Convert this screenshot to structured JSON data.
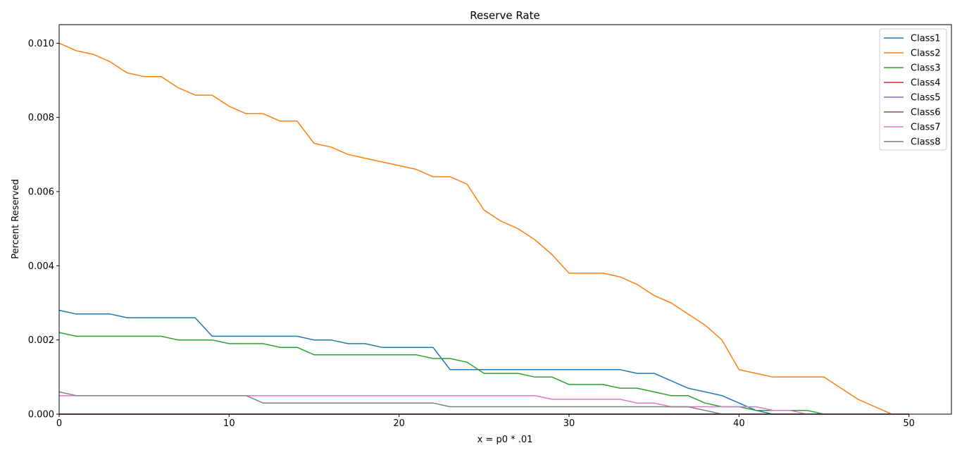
{
  "chart_data": {
    "type": "line",
    "title": "Reserve Rate",
    "xlabel": "x = p0 * .01",
    "ylabel": "Percent Reserved",
    "xlim": [
      0,
      52.5
    ],
    "ylim": [
      0,
      0.0105
    ],
    "x_ticks": [
      0,
      10,
      20,
      30,
      40,
      50
    ],
    "y_ticks": [
      0.0,
      0.002,
      0.004,
      0.006,
      0.008,
      0.01
    ],
    "x_tick_labels": [
      "0",
      "10",
      "20",
      "30",
      "40",
      "50"
    ],
    "y_tick_labels": [
      "0.000",
      "0.002",
      "0.004",
      "0.006",
      "0.008",
      "0.010"
    ],
    "grid": false,
    "legend_position": "top-right",
    "x": [
      0,
      1,
      2,
      3,
      4,
      5,
      6,
      7,
      8,
      9,
      10,
      11,
      12,
      13,
      14,
      15,
      16,
      17,
      18,
      19,
      20,
      21,
      22,
      23,
      24,
      25,
      26,
      27,
      28,
      29,
      30,
      31,
      32,
      33,
      34,
      35,
      36,
      37,
      38,
      39,
      40,
      41,
      42,
      43,
      44,
      45,
      46,
      47,
      48,
      49,
      50
    ],
    "series": [
      {
        "name": "Class1",
        "color": "#1f77b4",
        "values": [
          0.0028,
          0.0027,
          0.0027,
          0.0027,
          0.0026,
          0.0026,
          0.0026,
          0.0026,
          0.0026,
          0.0021,
          0.0021,
          0.0021,
          0.0021,
          0.0021,
          0.0021,
          0.002,
          0.002,
          0.0019,
          0.0019,
          0.0018,
          0.0018,
          0.0018,
          0.0018,
          0.0012,
          0.0012,
          0.0012,
          0.0012,
          0.0012,
          0.0012,
          0.0012,
          0.0012,
          0.0012,
          0.0012,
          0.0012,
          0.0011,
          0.0011,
          0.0009,
          0.0007,
          0.0006,
          0.0005,
          0.0003,
          0.0001,
          0,
          0,
          0,
          0,
          0,
          0,
          0,
          0,
          0
        ]
      },
      {
        "name": "Class2",
        "color": "#ff7f0e",
        "values": [
          0.01,
          0.0098,
          0.0097,
          0.0095,
          0.0092,
          0.0091,
          0.0091,
          0.0088,
          0.0086,
          0.0086,
          0.0083,
          0.0081,
          0.0081,
          0.0079,
          0.0079,
          0.0073,
          0.0072,
          0.007,
          0.0069,
          0.0068,
          0.0067,
          0.0066,
          0.0064,
          0.0064,
          0.0062,
          0.0055,
          0.0052,
          0.005,
          0.0047,
          0.0043,
          0.0038,
          0.0038,
          0.0038,
          0.0037,
          0.0035,
          0.0032,
          0.003,
          0.0027,
          0.0024,
          0.002,
          0.0012,
          0.0011,
          0.001,
          0.001,
          0.001,
          0.001,
          0.0007,
          0.0004,
          0.0002,
          0,
          0
        ]
      },
      {
        "name": "Class3",
        "color": "#2ca02c",
        "values": [
          0.0022,
          0.0021,
          0.0021,
          0.0021,
          0.0021,
          0.0021,
          0.0021,
          0.002,
          0.002,
          0.002,
          0.0019,
          0.0019,
          0.0019,
          0.0018,
          0.0018,
          0.0016,
          0.0016,
          0.0016,
          0.0016,
          0.0016,
          0.0016,
          0.0016,
          0.0015,
          0.0015,
          0.0014,
          0.0011,
          0.0011,
          0.0011,
          0.001,
          0.001,
          0.0008,
          0.0008,
          0.0008,
          0.0007,
          0.0007,
          0.0006,
          0.0005,
          0.0005,
          0.0003,
          0.0002,
          0.0002,
          0.0001,
          0.0001,
          0.0001,
          0.0001,
          0,
          0,
          0,
          0,
          0,
          0
        ]
      },
      {
        "name": "Class4",
        "color": "#d62728",
        "values": [
          0,
          0,
          0,
          0,
          0,
          0,
          0,
          0,
          0,
          0,
          0,
          0,
          0,
          0,
          0,
          0,
          0,
          0,
          0,
          0,
          0,
          0,
          0,
          0,
          0,
          0,
          0,
          0,
          0,
          0,
          0,
          0,
          0,
          0,
          0,
          0,
          0,
          0,
          0,
          0,
          0,
          0,
          0,
          0,
          0,
          0,
          0,
          0,
          0,
          0,
          0
        ]
      },
      {
        "name": "Class5",
        "color": "#9467bd",
        "values": [
          0,
          0,
          0,
          0,
          0,
          0,
          0,
          0,
          0,
          0,
          0,
          0,
          0,
          0,
          0,
          0,
          0,
          0,
          0,
          0,
          0,
          0,
          0,
          0,
          0,
          0,
          0,
          0,
          0,
          0,
          0,
          0,
          0,
          0,
          0,
          0,
          0,
          0,
          0,
          0,
          0,
          0,
          0,
          0,
          0,
          0,
          0,
          0,
          0,
          0,
          0
        ]
      },
      {
        "name": "Class6",
        "color": "#8c564b",
        "values": [
          0,
          0,
          0,
          0,
          0,
          0,
          0,
          0,
          0,
          0,
          0,
          0,
          0,
          0,
          0,
          0,
          0,
          0,
          0,
          0,
          0,
          0,
          0,
          0,
          0,
          0,
          0,
          0,
          0,
          0,
          0,
          0,
          0,
          0,
          0,
          0,
          0,
          0,
          0,
          0,
          0,
          0,
          0,
          0,
          0,
          0,
          0,
          0,
          0,
          0,
          0
        ]
      },
      {
        "name": "Class7",
        "color": "#e377c2",
        "values": [
          0.0005,
          0.0005,
          0.0005,
          0.0005,
          0.0005,
          0.0005,
          0.0005,
          0.0005,
          0.0005,
          0.0005,
          0.0005,
          0.0005,
          0.0005,
          0.0005,
          0.0005,
          0.0005,
          0.0005,
          0.0005,
          0.0005,
          0.0005,
          0.0005,
          0.0005,
          0.0005,
          0.0005,
          0.0005,
          0.0005,
          0.0005,
          0.0005,
          0.0005,
          0.0004,
          0.0004,
          0.0004,
          0.0004,
          0.0004,
          0.0003,
          0.0003,
          0.0002,
          0.0002,
          0.0002,
          0.0002,
          0.0002,
          0.0002,
          0.0001,
          0.0001,
          0,
          0,
          0,
          0,
          0,
          0,
          0
        ]
      },
      {
        "name": "Class8",
        "color": "#7f7f7f",
        "values": [
          0.0006,
          0.0005,
          0.0005,
          0.0005,
          0.0005,
          0.0005,
          0.0005,
          0.0005,
          0.0005,
          0.0005,
          0.0005,
          0.0005,
          0.0003,
          0.0003,
          0.0003,
          0.0003,
          0.0003,
          0.0003,
          0.0003,
          0.0003,
          0.0003,
          0.0003,
          0.0003,
          0.0002,
          0.0002,
          0.0002,
          0.0002,
          0.0002,
          0.0002,
          0.0002,
          0.0002,
          0.0002,
          0.0002,
          0.0002,
          0.0002,
          0.0002,
          0.0002,
          0.0002,
          0.0001,
          0,
          0,
          0,
          0,
          0,
          0,
          0,
          0,
          0,
          0,
          0,
          0
        ]
      }
    ]
  }
}
